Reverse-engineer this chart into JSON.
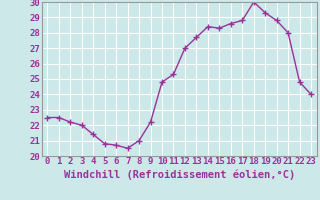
{
  "x": [
    0,
    1,
    2,
    3,
    4,
    5,
    6,
    7,
    8,
    9,
    10,
    11,
    12,
    13,
    14,
    15,
    16,
    17,
    18,
    19,
    20,
    21,
    22,
    23
  ],
  "y": [
    22.5,
    22.5,
    22.2,
    22.0,
    21.4,
    20.8,
    20.7,
    20.5,
    21.0,
    22.2,
    24.8,
    25.3,
    27.0,
    27.7,
    28.4,
    28.3,
    28.6,
    28.8,
    30.0,
    29.3,
    28.8,
    28.0,
    24.8,
    24.0
  ],
  "line_color": "#993399",
  "marker": "+",
  "marker_size": 4,
  "xlim": [
    -0.5,
    23.5
  ],
  "ylim": [
    20,
    30
  ],
  "yticks": [
    20,
    21,
    22,
    23,
    24,
    25,
    26,
    27,
    28,
    29,
    30
  ],
  "xtick_labels": [
    "0",
    "1",
    "2",
    "3",
    "4",
    "5",
    "6",
    "7",
    "8",
    "9",
    "10",
    "11",
    "12",
    "13",
    "14",
    "15",
    "16",
    "17",
    "18",
    "19",
    "20",
    "21",
    "22",
    "23"
  ],
  "xlabel": "Windchill (Refroidissement éolien,°C)",
  "bg_color": "#cce8e8",
  "grid_color": "#ffffff",
  "tick_fontsize": 6.5,
  "label_fontsize": 7.5,
  "spine_color": "#999999"
}
